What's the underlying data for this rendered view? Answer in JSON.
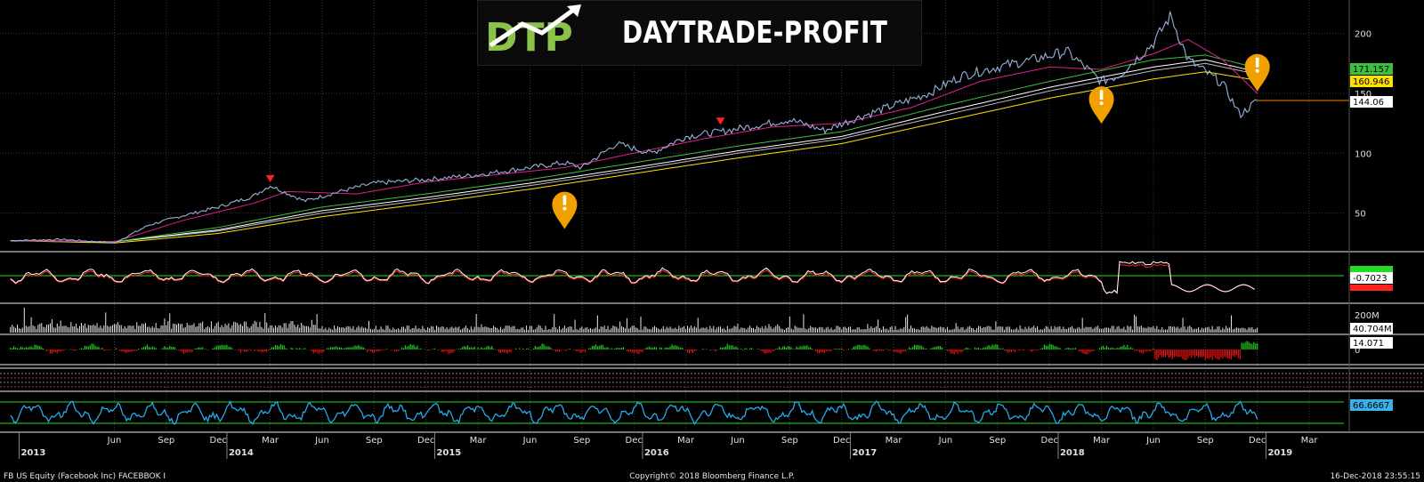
{
  "logo": {
    "mark_text": "DTP",
    "brand_text": "DAYTRADE-PROFIT",
    "accent_color": "#8bc34a"
  },
  "footer": {
    "left": "FB US Equity (Facebook Inc) FACEBBOK  I",
    "center": "Copyright© 2018 Bloomberg Finance L.P.",
    "right": "16-Dec-2018 23:55:15"
  },
  "chart_data": [
    {
      "panel": "price",
      "type": "line",
      "title": "",
      "x_start": "2012-12",
      "x_end": "2018-12",
      "y_ticks": [
        50,
        100,
        150,
        200
      ],
      "ylim": [
        20,
        225
      ],
      "series": [
        {
          "role": "price",
          "color": "#ffffff",
          "x": [
            "2012-12",
            "2013-03",
            "2013-06",
            "2013-08",
            "2013-10",
            "2013-12",
            "2014-02",
            "2014-03",
            "2014-05",
            "2014-07",
            "2014-09",
            "2014-12",
            "2015-03",
            "2015-06",
            "2015-08",
            "2015-09",
            "2015-11",
            "2016-01",
            "2016-03",
            "2016-05",
            "2016-07",
            "2016-09",
            "2016-11",
            "2017-01",
            "2017-03",
            "2017-05",
            "2017-07",
            "2017-09",
            "2017-11",
            "2018-01",
            "2018-03",
            "2018-04",
            "2018-06",
            "2018-07",
            "2018-08",
            "2018-10",
            "2018-11",
            "2018-12"
          ],
          "y": [
            27,
            28,
            25,
            40,
            48,
            55,
            64,
            73,
            60,
            68,
            75,
            78,
            82,
            88,
            92,
            88,
            108,
            100,
            114,
            118,
            123,
            128,
            119,
            130,
            140,
            150,
            165,
            172,
            178,
            185,
            160,
            165,
            192,
            215,
            178,
            158,
            132,
            144
          ]
        },
        {
          "role": "ma-short",
          "color": "#e0218a",
          "x": [
            "2012-12",
            "2013-06",
            "2013-10",
            "2014-02",
            "2014-04",
            "2014-08",
            "2014-12",
            "2015-04",
            "2015-08",
            "2015-12",
            "2016-04",
            "2016-08",
            "2016-12",
            "2017-04",
            "2017-08",
            "2017-12",
            "2018-03",
            "2018-06",
            "2018-08",
            "2018-10",
            "2018-12"
          ],
          "y": [
            27,
            26,
            44,
            58,
            68,
            66,
            76,
            82,
            88,
            100,
            112,
            122,
            125,
            138,
            160,
            172,
            170,
            183,
            195,
            178,
            150
          ]
        },
        {
          "role": "ma-green",
          "color": "#3fbf3f",
          "x": [
            "2012-12",
            "2013-06",
            "2013-12",
            "2014-06",
            "2014-12",
            "2015-06",
            "2015-12",
            "2016-06",
            "2016-12",
            "2017-06",
            "2017-12",
            "2018-06",
            "2018-09",
            "2018-12"
          ],
          "y": [
            27,
            26,
            38,
            55,
            66,
            78,
            92,
            106,
            118,
            140,
            160,
            178,
            182,
            171.157
          ]
        },
        {
          "role": "ma-white-1",
          "color": "#ffffff",
          "x": [
            "2012-12",
            "2013-06",
            "2013-12",
            "2014-06",
            "2014-12",
            "2015-06",
            "2015-12",
            "2016-06",
            "2016-12",
            "2017-06",
            "2017-12",
            "2018-06",
            "2018-09",
            "2018-12"
          ],
          "y": [
            27,
            26,
            36,
            52,
            63,
            75,
            88,
            102,
            114,
            135,
            155,
            172,
            178,
            168
          ]
        },
        {
          "role": "ma-white-2",
          "color": "#bbbbbb",
          "x": [
            "2012-12",
            "2013-06",
            "2013-12",
            "2014-06",
            "2014-12",
            "2015-06",
            "2015-12",
            "2016-06",
            "2016-12",
            "2017-06",
            "2017-12",
            "2018-06",
            "2018-09",
            "2018-12"
          ],
          "y": [
            27,
            26,
            35,
            50,
            61,
            73,
            86,
            100,
            112,
            132,
            152,
            169,
            175,
            166
          ]
        },
        {
          "role": "ma-yellow",
          "color": "#ffe000",
          "x": [
            "2012-12",
            "2013-06",
            "2013-12",
            "2014-06",
            "2014-12",
            "2015-06",
            "2015-12",
            "2016-06",
            "2016-12",
            "2017-06",
            "2017-12",
            "2018-06",
            "2018-09",
            "2018-12"
          ],
          "y": [
            27,
            25,
            33,
            47,
            58,
            70,
            83,
            96,
            108,
            127,
            146,
            162,
            168,
            160.946
          ]
        }
      ],
      "right_labels": [
        {
          "value": "171.157",
          "y": 171.157,
          "bg": "#3fbf3f",
          "fg": "#000000"
        },
        {
          "value": "160.946",
          "y": 160.946,
          "bg": "#ffe000",
          "fg": "#000000"
        },
        {
          "value": "144.06",
          "y": 144.06,
          "bg": "#ffffff",
          "fg": "#000000"
        }
      ],
      "markers": [
        {
          "type": "triangle-down",
          "color": "#ff2020",
          "x": "2014-03",
          "y": 78
        },
        {
          "type": "triangle-down",
          "color": "#ff2020",
          "x": "2016-05",
          "y": 126
        },
        {
          "type": "pin",
          "color": "#f0a000",
          "x": "2015-08",
          "y": 50
        },
        {
          "type": "pin",
          "color": "#f0a000",
          "x": "2018-03",
          "y": 138
        },
        {
          "type": "pin",
          "color": "#f0a000",
          "x": "2018-12",
          "y": 165
        }
      ]
    },
    {
      "panel": "macd",
      "type": "line",
      "right_labels": [
        {
          "value": "-0.7023",
          "bg": "#ffffff",
          "fg": "#000000"
        }
      ],
      "series_colors": [
        "#ffffff",
        "#ff2020",
        "#22dd22"
      ]
    },
    {
      "panel": "volume",
      "type": "bar",
      "y_ticks_labels": [
        "200M"
      ],
      "right_labels": [
        {
          "value": "40.704M",
          "bg": "#ffffff",
          "fg": "#000000"
        }
      ]
    },
    {
      "panel": "momentum",
      "type": "area",
      "y_ticks_labels": [
        "0"
      ],
      "right_labels": [
        {
          "value": "14.071",
          "bg": "#ffffff",
          "fg": "#000000"
        }
      ]
    },
    {
      "panel": "oscillator",
      "type": "line",
      "color": "#2aa8e8",
      "right_labels": [
        {
          "value": "66.6667",
          "bg": "#3ab0e8",
          "fg": "#000000"
        }
      ]
    }
  ],
  "x_axis": {
    "months": [
      "Jun",
      "Sep",
      "Dec",
      "Mar",
      "Jun",
      "Sep",
      "Dec",
      "Mar",
      "Jun",
      "Sep",
      "Dec",
      "Mar",
      "Jun",
      "Sep",
      "Dec",
      "Mar",
      "Jun",
      "Sep",
      "Dec",
      "Mar",
      "Jun",
      "Sep",
      "Dec",
      "Mar"
    ],
    "years": [
      "2013",
      "2014",
      "2015",
      "2016",
      "2017",
      "2018",
      "2019"
    ]
  }
}
